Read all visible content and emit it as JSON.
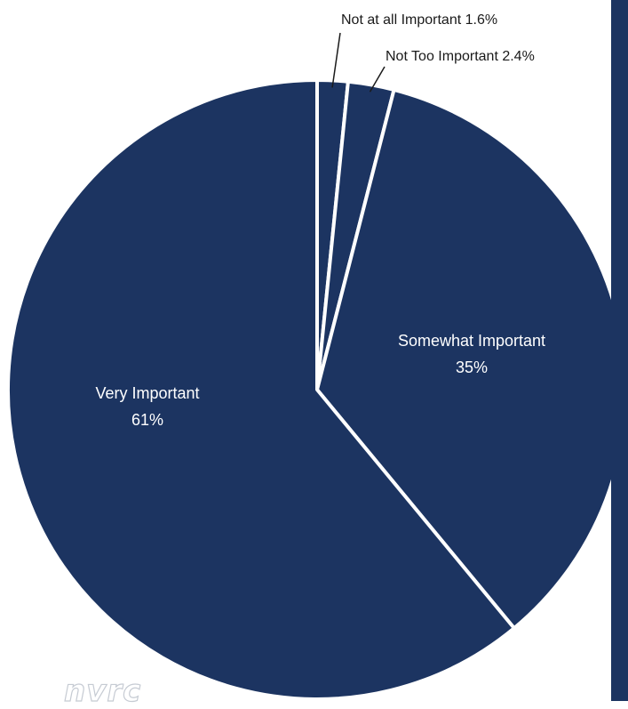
{
  "chart_data": {
    "type": "pie",
    "slices": [
      {
        "label": "Not at all Important",
        "value_label": "1.6%",
        "value": 1.6
      },
      {
        "label": "Not Too Important",
        "value_label": "2.4%",
        "value": 2.4
      },
      {
        "label": "Somewhat Important",
        "value_label": "35%",
        "value": 35
      },
      {
        "label": "Very Important",
        "value_label": "61%",
        "value": 61
      }
    ]
  },
  "colors": {
    "slice_fill": "#1c3461",
    "slice_border": "#ffffff",
    "inside_label": "#ffffff",
    "callout_text": "#1a1a1a",
    "right_panel": "#1c3461"
  },
  "watermark": "nvrc"
}
